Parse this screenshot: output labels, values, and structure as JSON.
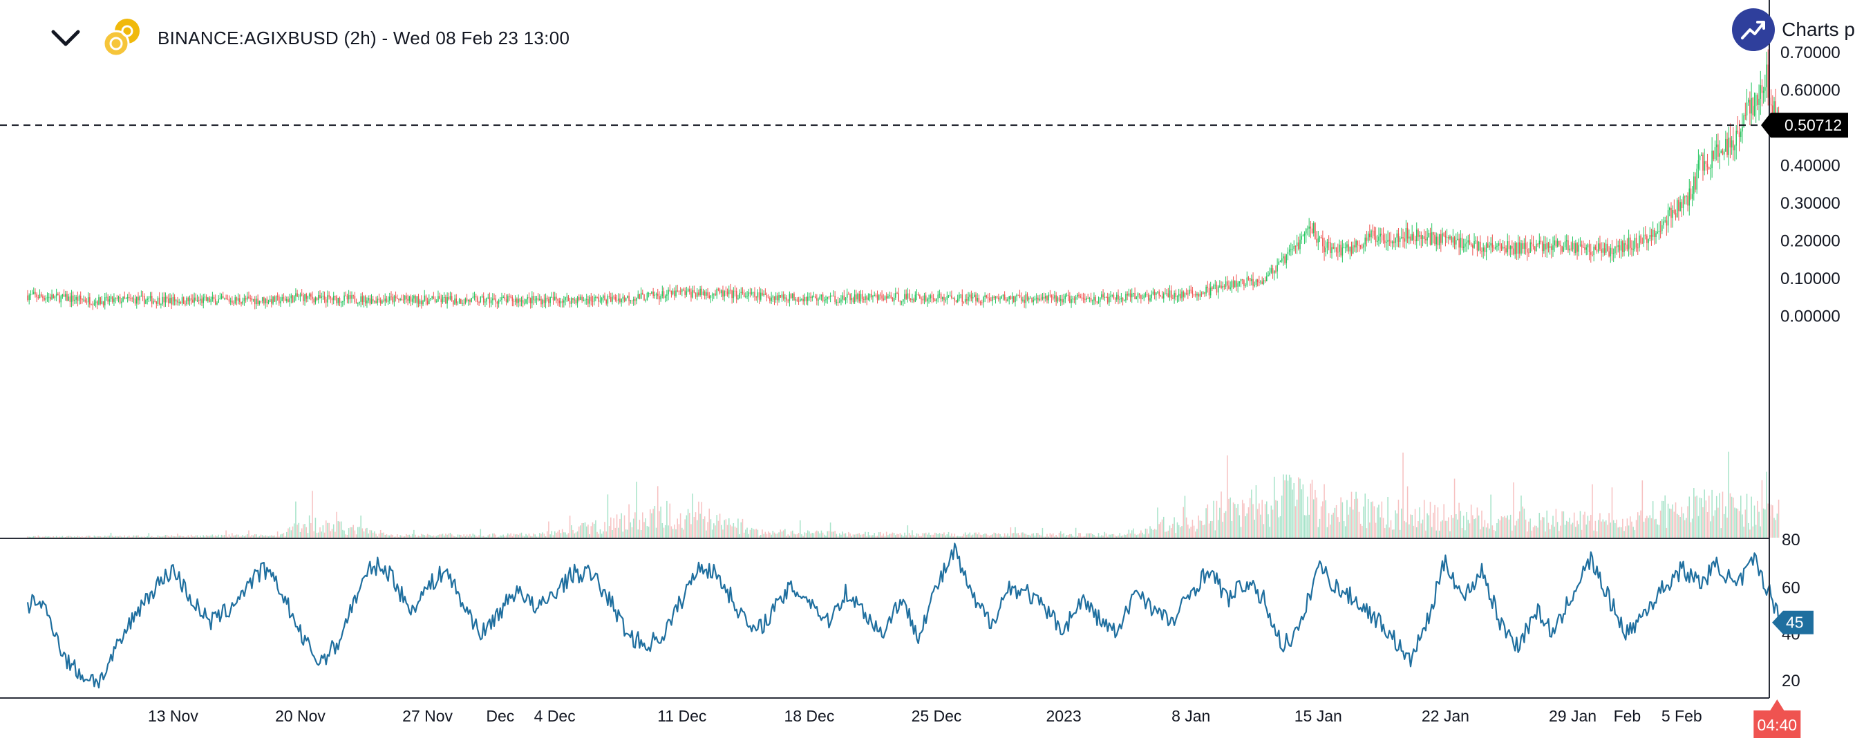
{
  "header": {
    "title": "BINANCE:AGIXBUSD (2h) - Wed 08 Feb 23 13:00",
    "brand_text": "Charts p",
    "chevron_icon": "chevron-down-icon",
    "coin_icon": "agix-coin-icon",
    "brand_icon": "trend-up-icon"
  },
  "colors": {
    "up": "#26a69a",
    "up_bright": "#22c55e",
    "down": "#ef5350",
    "vol_up": "#a7e3c9",
    "vol_down": "#f7c1c1",
    "rsi": "#1f6f9f",
    "price_label_bg": "#000000",
    "rsi_label_bg": "#1f6f9f",
    "countdown_bg": "#ef5350",
    "brand": "#2f3f9c",
    "coin": "#f0b90b"
  },
  "price_axis": {
    "ticks": [
      "0.70000",
      "0.60000",
      "0.50000",
      "0.40000",
      "0.30000",
      "0.20000",
      "0.10000",
      "0.00000"
    ],
    "tick_values": [
      0.7,
      0.6,
      0.5,
      0.4,
      0.3,
      0.2,
      0.1,
      0.0
    ]
  },
  "rsi_axis": {
    "ticks": [
      "80",
      "60",
      "40",
      "20"
    ],
    "tick_values": [
      80,
      60,
      40,
      20
    ]
  },
  "time_axis": {
    "labels": [
      "13 Nov",
      "20 Nov",
      "27 Nov",
      "Dec",
      "4 Dec",
      "11 Dec",
      "18 Dec",
      "25 Dec",
      "2023",
      "8 Jan",
      "15 Jan",
      "22 Jan",
      "29 Jan",
      "Feb",
      "5 Feb"
    ],
    "day_index": [
      8,
      15,
      22,
      26,
      29,
      36,
      43,
      50,
      57,
      64,
      71,
      78,
      85,
      88,
      91
    ]
  },
  "last_price": {
    "label": "0.50712",
    "value": 0.50712
  },
  "rsi_last": {
    "label": "45",
    "value": 45
  },
  "countdown": {
    "label": "04:40"
  },
  "chart_data": [
    {
      "type": "candlestick",
      "title": "BINANCE:AGIXBUSD (2h)",
      "x_domain_days": [
        0,
        96.5
      ],
      "ylim": [
        -0.07,
        0.72
      ],
      "grid": false,
      "price_keypoints": [
        [
          0,
          0.055
        ],
        [
          2,
          0.048
        ],
        [
          4,
          0.04
        ],
        [
          6,
          0.044
        ],
        [
          9,
          0.041
        ],
        [
          12,
          0.043
        ],
        [
          14,
          0.042
        ],
        [
          15,
          0.052
        ],
        [
          16,
          0.046
        ],
        [
          20,
          0.044
        ],
        [
          24,
          0.042
        ],
        [
          28,
          0.043
        ],
        [
          32,
          0.045
        ],
        [
          34,
          0.052
        ],
        [
          36,
          0.062
        ],
        [
          38,
          0.06
        ],
        [
          40,
          0.054
        ],
        [
          44,
          0.047
        ],
        [
          48,
          0.05
        ],
        [
          52,
          0.048
        ],
        [
          56,
          0.046
        ],
        [
          60,
          0.047
        ],
        [
          62,
          0.055
        ],
        [
          64,
          0.058
        ],
        [
          65,
          0.068
        ],
        [
          66,
          0.08
        ],
        [
          67,
          0.09
        ],
        [
          68,
          0.1
        ],
        [
          69,
          0.14
        ],
        [
          70,
          0.2
        ],
        [
          70.6,
          0.24
        ],
        [
          71.2,
          0.19
        ],
        [
          72,
          0.175
        ],
        [
          73,
          0.185
        ],
        [
          74,
          0.21
        ],
        [
          76,
          0.215
        ],
        [
          78,
          0.205
        ],
        [
          80,
          0.185
        ],
        [
          82,
          0.18
        ],
        [
          84,
          0.19
        ],
        [
          86,
          0.18
        ],
        [
          87,
          0.175
        ],
        [
          88,
          0.19
        ],
        [
          89,
          0.2
        ],
        [
          90,
          0.25
        ],
        [
          90.8,
          0.29
        ],
        [
          91.5,
          0.32
        ],
        [
          92,
          0.4
        ],
        [
          93,
          0.43
        ],
        [
          94,
          0.48
        ],
        [
          94.6,
          0.57
        ],
        [
          95.2,
          0.55
        ],
        [
          95.6,
          0.65
        ],
        [
          96,
          0.56
        ],
        [
          96.4,
          0.507
        ]
      ],
      "volume_keypoints": [
        [
          0,
          0.02
        ],
        [
          14,
          0.05
        ],
        [
          15,
          0.35
        ],
        [
          20,
          0.05
        ],
        [
          28,
          0.06
        ],
        [
          34,
          0.4
        ],
        [
          36,
          0.6
        ],
        [
          40,
          0.12
        ],
        [
          46,
          0.08
        ],
        [
          60,
          0.06
        ],
        [
          64,
          0.4
        ],
        [
          67,
          0.6
        ],
        [
          69,
          0.9
        ],
        [
          71,
          0.75
        ],
        [
          74,
          0.55
        ],
        [
          80,
          0.45
        ],
        [
          86,
          0.35
        ],
        [
          88,
          0.3
        ],
        [
          90,
          0.55
        ],
        [
          92,
          0.75
        ],
        [
          94,
          0.6
        ],
        [
          96.4,
          0.5
        ]
      ],
      "last_value": 0.50712
    },
    {
      "type": "line",
      "title": "RSI",
      "ylim": [
        14,
        80
      ],
      "rsi_keypoints": [
        [
          0,
          52
        ],
        [
          0.5,
          55
        ],
        [
          1,
          50
        ],
        [
          1.5,
          42
        ],
        [
          2,
          30
        ],
        [
          3,
          22
        ],
        [
          4,
          20
        ],
        [
          5,
          35
        ],
        [
          6,
          50
        ],
        [
          7,
          60
        ],
        [
          8,
          68
        ],
        [
          9,
          55
        ],
        [
          10,
          45
        ],
        [
          11,
          50
        ],
        [
          12,
          60
        ],
        [
          13,
          68
        ],
        [
          14,
          58
        ],
        [
          15,
          40
        ],
        [
          16,
          28
        ],
        [
          17,
          35
        ],
        [
          18,
          55
        ],
        [
          19,
          70
        ],
        [
          20,
          66
        ],
        [
          21,
          50
        ],
        [
          22,
          60
        ],
        [
          23,
          68
        ],
        [
          24,
          52
        ],
        [
          25,
          40
        ],
        [
          26,
          50
        ],
        [
          27,
          60
        ],
        [
          28,
          50
        ],
        [
          29,
          58
        ],
        [
          30,
          66
        ],
        [
          31,
          66
        ],
        [
          32,
          55
        ],
        [
          33,
          40
        ],
        [
          34,
          35
        ],
        [
          35,
          40
        ],
        [
          36,
          55
        ],
        [
          37,
          70
        ],
        [
          38,
          65
        ],
        [
          39,
          52
        ],
        [
          40,
          40
        ],
        [
          41,
          50
        ],
        [
          42,
          60
        ],
        [
          43,
          55
        ],
        [
          44,
          45
        ],
        [
          45,
          58
        ],
        [
          46,
          50
        ],
        [
          47,
          40
        ],
        [
          48,
          55
        ],
        [
          49,
          40
        ],
        [
          50,
          60
        ],
        [
          51,
          76
        ],
        [
          52,
          55
        ],
        [
          53,
          45
        ],
        [
          54,
          60
        ],
        [
          55,
          58
        ],
        [
          56,
          50
        ],
        [
          57,
          42
        ],
        [
          58,
          55
        ],
        [
          59,
          46
        ],
        [
          60,
          40
        ],
        [
          61,
          60
        ],
        [
          62,
          50
        ],
        [
          63,
          45
        ],
        [
          64,
          58
        ],
        [
          65,
          68
        ],
        [
          66,
          55
        ],
        [
          67,
          62
        ],
        [
          68,
          55
        ],
        [
          69,
          35
        ],
        [
          70,
          42
        ],
        [
          71,
          70
        ],
        [
          72,
          60
        ],
        [
          73,
          55
        ],
        [
          74,
          48
        ],
        [
          75,
          40
        ],
        [
          76,
          28
        ],
        [
          77,
          45
        ],
        [
          78,
          72
        ],
        [
          79,
          55
        ],
        [
          80,
          68
        ],
        [
          81,
          45
        ],
        [
          82,
          35
        ],
        [
          83,
          50
        ],
        [
          84,
          40
        ],
        [
          85,
          58
        ],
        [
          86,
          72
        ],
        [
          87,
          55
        ],
        [
          88,
          40
        ],
        [
          89,
          50
        ],
        [
          90,
          60
        ],
        [
          91,
          68
        ],
        [
          92,
          62
        ],
        [
          93,
          70
        ],
        [
          94,
          60
        ],
        [
          95,
          72
        ],
        [
          96,
          55
        ],
        [
          96.4,
          45
        ]
      ],
      "last_value": 45
    }
  ]
}
